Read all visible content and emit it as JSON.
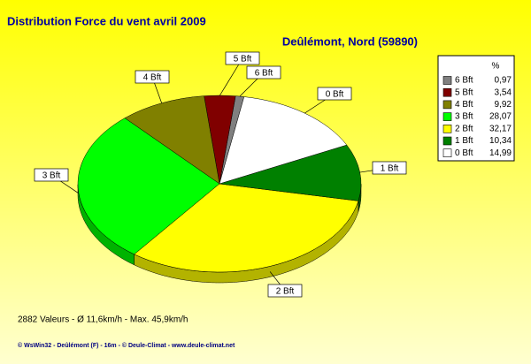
{
  "chart_data": {
    "type": "pie",
    "title": "Distribution Force du vent  avril 2009",
    "subtitle": "Deûlémont, Nord (59890)",
    "legend_header": "%",
    "categories": [
      "6 Bft",
      "5 Bft",
      "4 Bft",
      "3 Bft",
      "2 Bft",
      "1 Bft",
      "0 Bft"
    ],
    "values": [
      0.97,
      3.54,
      9.92,
      28.07,
      32.17,
      10.34,
      14.99
    ],
    "value_labels": [
      "0,97",
      "3,54",
      "9,92",
      "28,07",
      "32,17",
      "10,34",
      "14,99"
    ],
    "colors": [
      "#808080",
      "#800000",
      "#808000",
      "#00ff00",
      "#ffff00",
      "#008000",
      "#ffffff"
    ],
    "legend": "top-right",
    "footer": "2882 Valeurs   -   Ø 11,6km/h  -  Max. 45,9km/h",
    "credit": "© WsWin32  -  Deûlémont (F) - 16m  -  © Deule-Climat - www.deule-climat.net"
  }
}
